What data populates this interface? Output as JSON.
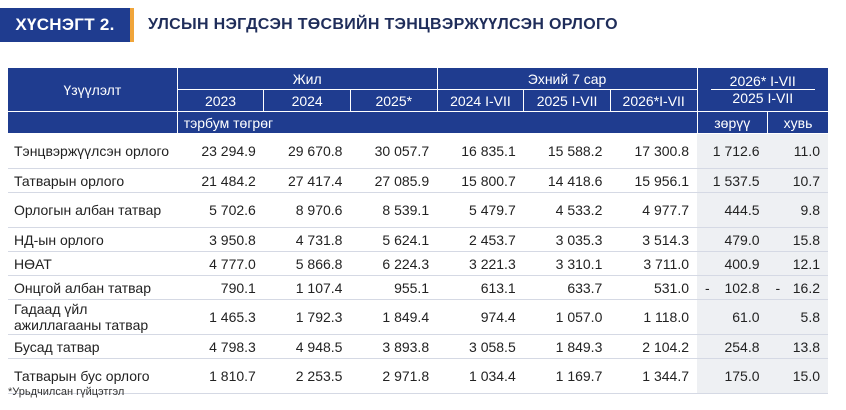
{
  "title": {
    "badge": "ХҮСНЭГТ 2.",
    "text": "УЛСЫН НЭГДСЭН ТӨСВИЙН ТЭНЦВЭРЖҮҮЛСЭН ОРЛОГО"
  },
  "header": {
    "indicator": "Үзүүлэлт",
    "group_year": "Жил",
    "group_7m": "Эхний 7 сар",
    "group_cmp_line1": "2026* I-VII",
    "group_cmp_line2": "2025   I-VII",
    "years": [
      "2023",
      "2024",
      "2025*"
    ],
    "periods": [
      "2024 I-VII",
      "2025 I-VII",
      "2026*I-VII"
    ],
    "unit": "тэрбум төгрөг",
    "diff": "зөрүү",
    "share": "хувь"
  },
  "rows": [
    {
      "label": "Тэнцвэржүүлсэн орлого",
      "values": [
        "23 294.9",
        "29 670.8",
        "30 057.7",
        "16 835.1",
        "15 588.2",
        "17 300.8",
        "1 712.6",
        "11.0"
      ]
    },
    {
      "label": "Татварын орлого",
      "values": [
        "21 484.2",
        "27 417.4",
        "27 085.9",
        "15 800.7",
        "14 418.6",
        "15 956.1",
        "1 537.5",
        "10.7"
      ]
    },
    {
      "label": "Орлогын албан татвар",
      "values": [
        "5 702.6",
        "8 970.6",
        "8 539.1",
        "5 479.7",
        "4 533.2",
        "4 977.7",
        "444.5",
        "9.8"
      ]
    },
    {
      "label": "НД-ын орлого",
      "values": [
        "3 950.8",
        "4 731.8",
        "5 624.1",
        "2 453.7",
        "3 035.3",
        "3 514.3",
        "479.0",
        "15.8"
      ]
    },
    {
      "label": "НӨАТ",
      "values": [
        "4 777.0",
        "5 866.8",
        "6 224.3",
        "3 221.3",
        "3 310.1",
        "3 711.0",
        "400.9",
        "12.1"
      ]
    },
    {
      "label": "Онцгой албан татвар",
      "values": [
        "790.1",
        "1 107.4",
        "955.1",
        "613.1",
        "633.7",
        "531.0",
        "102.8",
        "16.2"
      ],
      "negative": true
    },
    {
      "label": "Гадаад үйл ажиллагааны татвар",
      "values": [
        "1 465.3",
        "1 792.3",
        "1 849.4",
        "974.4",
        "1 057.0",
        "1 118.0",
        "61.0",
        "5.8"
      ]
    },
    {
      "label": "Бусад татвар",
      "values": [
        "4 798.3",
        "4 948.5",
        "3 893.8",
        "3 058.5",
        "1 849.3",
        "2 104.2",
        "254.8",
        "13.8"
      ]
    },
    {
      "label": "Татварын бус орлого",
      "values": [
        "1 810.7",
        "2 253.5",
        "2 971.8",
        "1 034.4",
        "1 169.7",
        "1 344.7",
        "175.0",
        "15.0"
      ]
    }
  ],
  "negative_sign": "-",
  "footnote": "*Урьдчилсан гүйцэтгэл"
}
